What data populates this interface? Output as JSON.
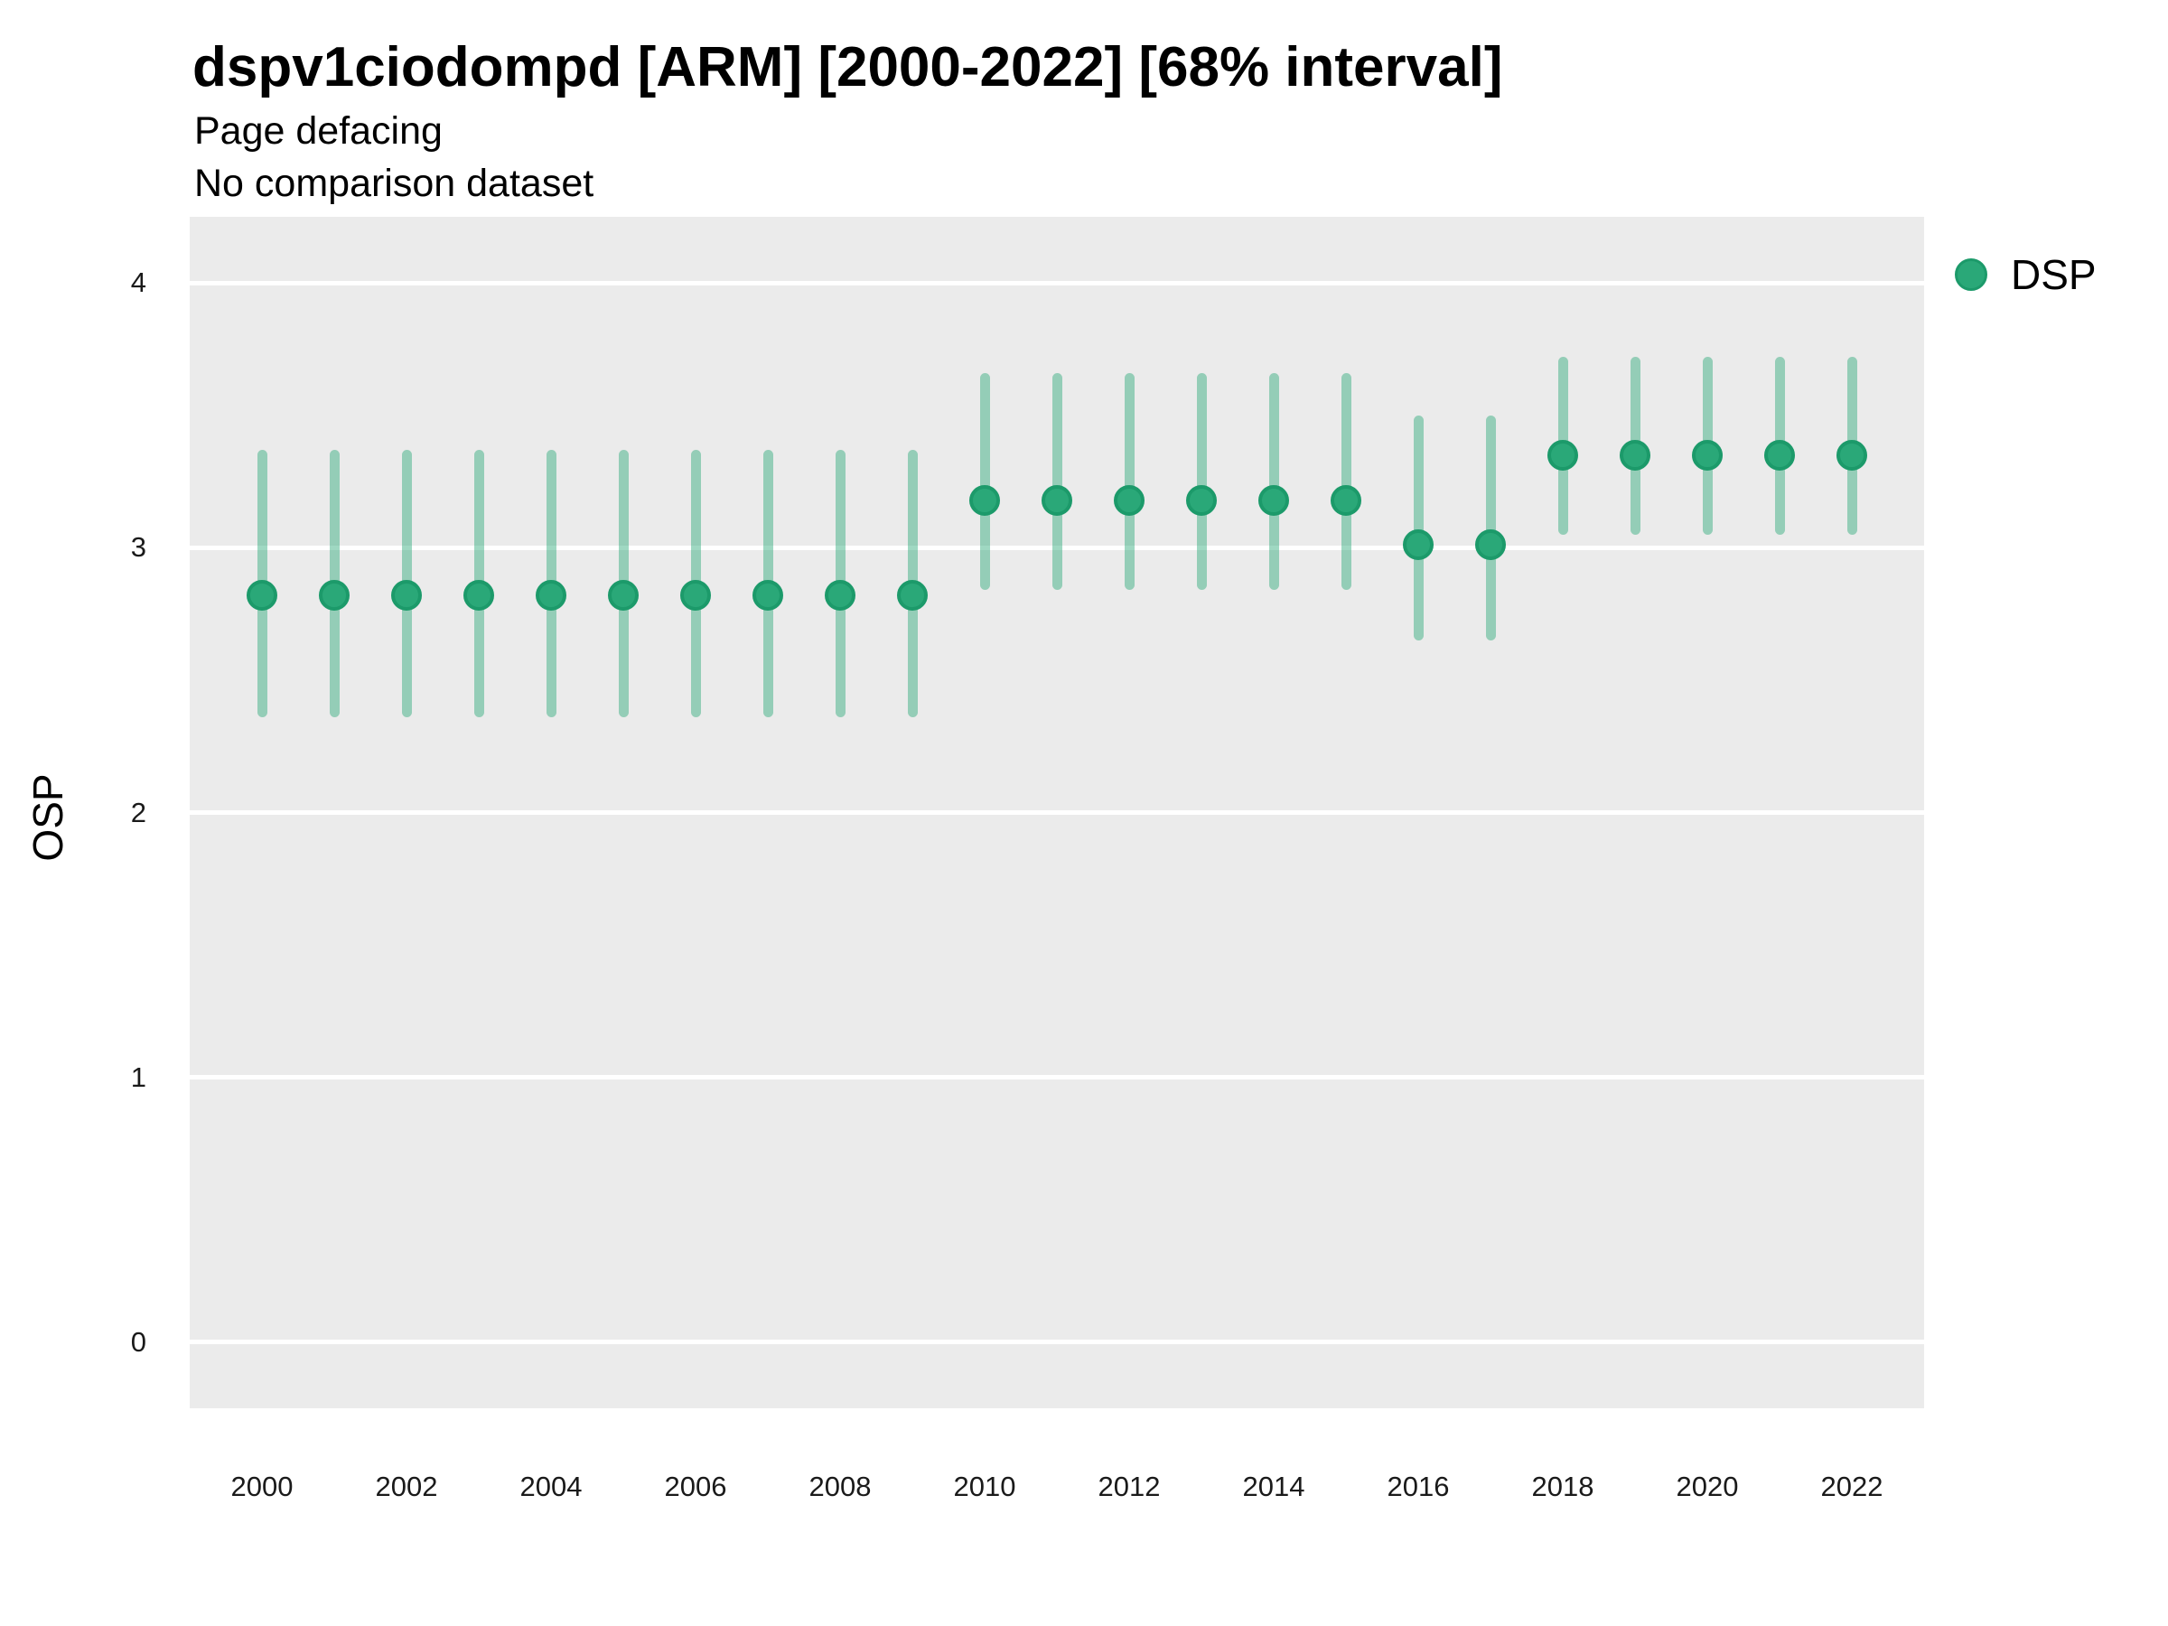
{
  "header": {
    "title": "dspv1ciodompd [ARM] [2000-2022] [68% interval]",
    "subtitle1": "Page defacing",
    "subtitle2": "No comparison dataset"
  },
  "legend": {
    "series_label": "DSP"
  },
  "axes": {
    "y_label": "OSP",
    "y_ticks": [
      0,
      1,
      2,
      3,
      4
    ],
    "x_ticks": [
      2000,
      2002,
      2004,
      2006,
      2008,
      2010,
      2012,
      2014,
      2016,
      2018,
      2020,
      2022
    ]
  },
  "colors": {
    "point_fill": "#2aa878",
    "point_ring": "#1c9a6a",
    "interval_bar": "rgba(42,168,120,0.45)",
    "panel_background": "#ebebeb",
    "gridline": "#ffffff"
  },
  "chart_data": {
    "type": "scatter",
    "subtype": "pointrange",
    "title": "dspv1ciodompd [ARM] [2000-2022] [68% interval]",
    "subtitle": [
      "Page defacing",
      "No comparison dataset"
    ],
    "interval_level": "68%",
    "xlabel": "",
    "ylabel": "OSP",
    "xlim": [
      1999,
      2023
    ],
    "ylim": [
      -0.25,
      4.25
    ],
    "grid": "major-horizontal",
    "legend_position": "right",
    "x": [
      2000,
      2001,
      2002,
      2003,
      2004,
      2005,
      2006,
      2007,
      2008,
      2009,
      2010,
      2011,
      2012,
      2013,
      2014,
      2015,
      2016,
      2017,
      2018,
      2019,
      2020,
      2021,
      2022
    ],
    "series": [
      {
        "name": "DSP",
        "values": [
          2.82,
          2.82,
          2.82,
          2.82,
          2.82,
          2.82,
          2.82,
          2.82,
          2.82,
          2.82,
          3.18,
          3.18,
          3.18,
          3.18,
          3.18,
          3.18,
          3.01,
          3.01,
          3.35,
          3.35,
          3.35,
          3.35,
          3.35
        ],
        "interval_low": [
          2.36,
          2.36,
          2.36,
          2.36,
          2.36,
          2.36,
          2.36,
          2.36,
          2.36,
          2.36,
          2.84,
          2.84,
          2.84,
          2.84,
          2.84,
          2.84,
          2.65,
          2.65,
          3.05,
          3.05,
          3.05,
          3.05,
          3.05
        ],
        "interval_high": [
          3.37,
          3.37,
          3.37,
          3.37,
          3.37,
          3.37,
          3.37,
          3.37,
          3.37,
          3.37,
          3.66,
          3.66,
          3.66,
          3.66,
          3.66,
          3.66,
          3.5,
          3.5,
          3.72,
          3.72,
          3.72,
          3.72,
          3.72
        ]
      }
    ]
  }
}
